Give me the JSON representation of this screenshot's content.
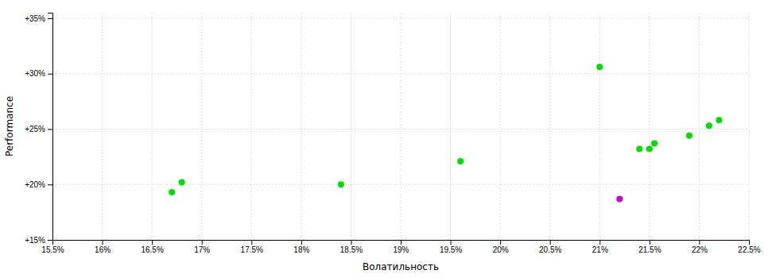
{
  "chart_data": {
    "type": "scatter",
    "title": "",
    "xlabel": "Волатильность",
    "ylabel": "Performance",
    "xlim": [
      0.155,
      0.225
    ],
    "ylim": [
      0.15,
      0.355
    ],
    "xticks": [
      {
        "value": 0.155,
        "label": "15.5%"
      },
      {
        "value": 0.16,
        "label": "16%"
      },
      {
        "value": 0.165,
        "label": "16.5%"
      },
      {
        "value": 0.17,
        "label": "17%"
      },
      {
        "value": 0.175,
        "label": "17.5%"
      },
      {
        "value": 0.18,
        "label": "18%"
      },
      {
        "value": 0.185,
        "label": "18.5%"
      },
      {
        "value": 0.19,
        "label": "19%"
      },
      {
        "value": 0.195,
        "label": "19.5%"
      },
      {
        "value": 0.2,
        "label": "20%"
      },
      {
        "value": 0.205,
        "label": "20.5%"
      },
      {
        "value": 0.21,
        "label": "21%"
      },
      {
        "value": 0.215,
        "label": "21.5%"
      },
      {
        "value": 0.22,
        "label": "22%"
      },
      {
        "value": 0.225,
        "label": "22.5%"
      }
    ],
    "yticks": [
      {
        "value": 0.15,
        "label": "+15%"
      },
      {
        "value": 0.2,
        "label": "+20%"
      },
      {
        "value": 0.25,
        "label": "+25%"
      },
      {
        "value": 0.3,
        "label": "+30%"
      },
      {
        "value": 0.35,
        "label": "+35%"
      }
    ],
    "grid": true,
    "series": [
      {
        "color": "#00dd00",
        "x": [
          0.168,
          0.167,
          0.184,
          0.196,
          0.21,
          0.214,
          0.215,
          0.2155,
          0.219,
          0.221,
          0.222
        ],
        "values": [
          0.202,
          0.193,
          0.2,
          0.221,
          0.306,
          0.232,
          0.232,
          0.237,
          0.244,
          0.253,
          0.258
        ]
      },
      {
        "color": "#cc00cc",
        "x": [
          0.212
        ],
        "values": [
          0.187
        ]
      }
    ]
  }
}
